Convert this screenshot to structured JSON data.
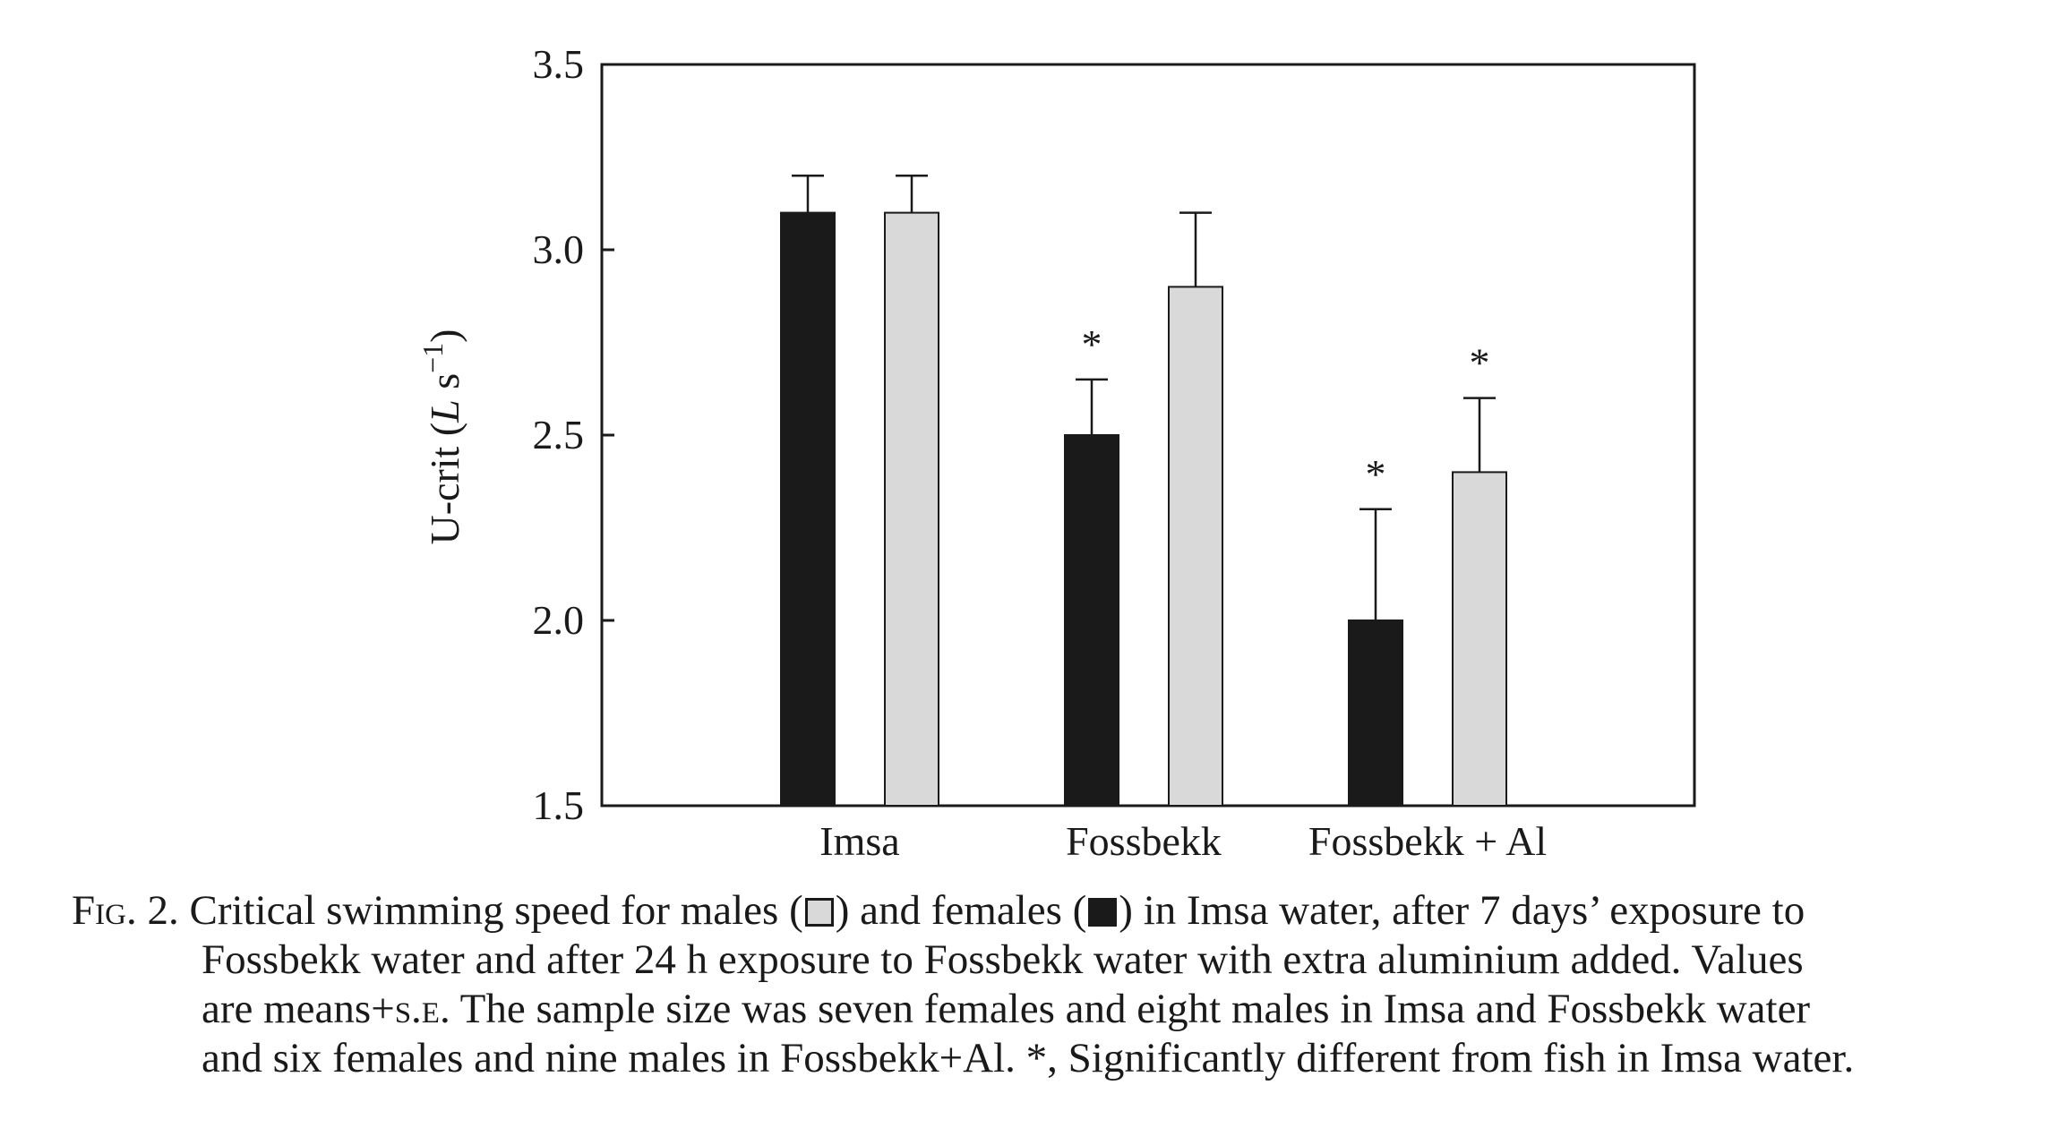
{
  "chart_data": {
    "type": "bar",
    "categories": [
      "Imsa",
      "Fossbekk",
      "Fossbekk + Al"
    ],
    "series": [
      {
        "name": "females",
        "color": "#1a1a1a",
        "values": [
          3.1,
          2.5,
          2.0
        ],
        "errors": [
          0.1,
          0.15,
          0.3
        ],
        "significant": [
          false,
          true,
          true
        ]
      },
      {
        "name": "males",
        "color": "#d9d9d9",
        "values": [
          3.1,
          2.9,
          2.4
        ],
        "errors": [
          0.1,
          0.2,
          0.2
        ],
        "significant": [
          false,
          false,
          true
        ]
      }
    ],
    "ylabel": "U-crit (",
    "ylabel_L": "L",
    "ylabel_unit": " s",
    "ylabel_exp": "−1",
    "ylabel_close": ")",
    "ylim": [
      1.5,
      3.5
    ],
    "yticks": [
      "1.5",
      "2.0",
      "2.5",
      "3.0",
      "3.5"
    ],
    "significance_marker": "*",
    "grid": false
  },
  "caption": {
    "fig_word": "Fig",
    "fig_number": ". 2.",
    "line1_a": " Critical swimming speed for males (",
    "line1_b": ") and females (",
    "line1_c": ") in Imsa water, after 7 days’ exposure to",
    "line2": "Fossbekk water and after 24 h exposure to Fossbekk water with extra aluminium added. Values",
    "line3_a": "are means+",
    "line3_se": "s.e.",
    "line3_b": " The sample size was seven females and eight males in Imsa and Fossbekk water",
    "line4": "and six females and nine males in Fossbekk+Al. *, Significantly different from fish in Imsa water."
  }
}
